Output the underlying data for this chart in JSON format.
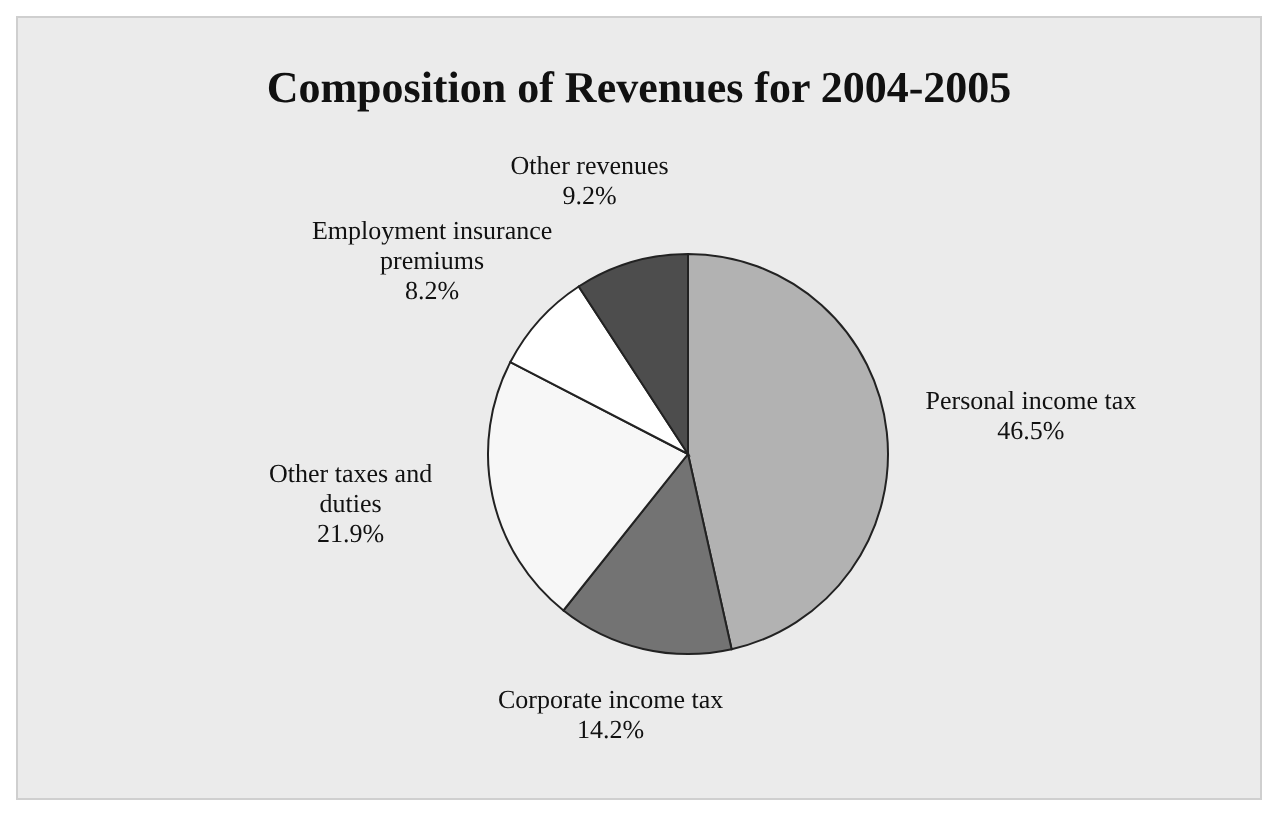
{
  "chart_data": {
    "type": "pie",
    "title": "Composition of Revenues for 2004-2005",
    "categories": [
      "Personal income tax",
      "Corporate income tax",
      "Other taxes and duties",
      "Employment insurance premiums",
      "Other revenues"
    ],
    "values": [
      46.5,
      14.2,
      21.9,
      8.2,
      9.2
    ],
    "value_labels": [
      "46.5%",
      "14.2%",
      "21.9%",
      "8.2%",
      "9.2%"
    ],
    "colors": [
      "#b2b2b2",
      "#737373",
      "#f7f7f7",
      "#ffffff",
      "#4d4d4d"
    ],
    "legend": false
  }
}
